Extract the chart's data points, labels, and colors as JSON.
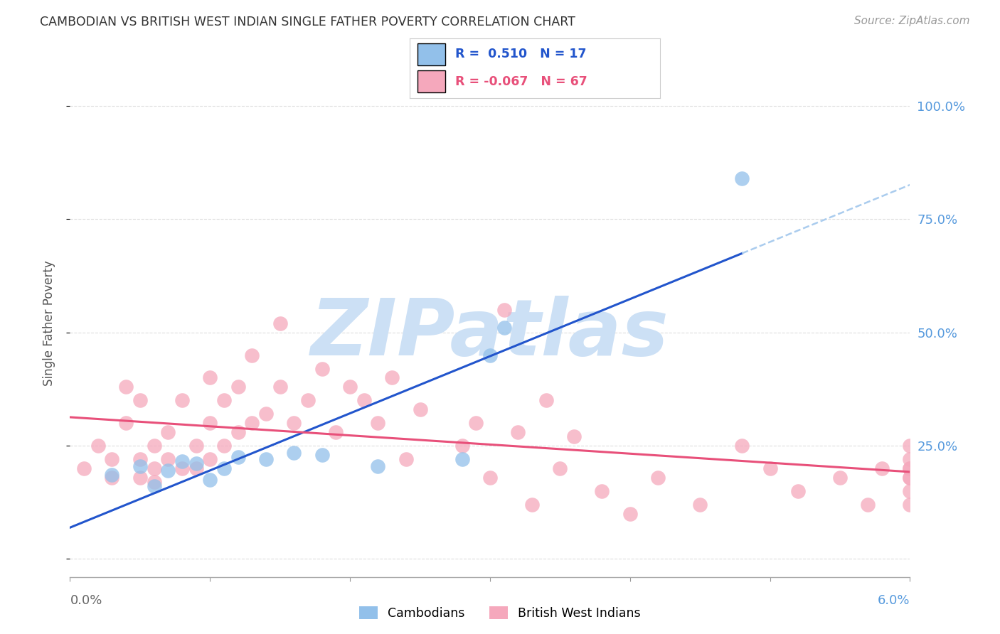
{
  "title": "CAMBODIAN VS BRITISH WEST INDIAN SINGLE FATHER POVERTY CORRELATION CHART",
  "source": "Source: ZipAtlas.com",
  "ylabel": "Single Father Poverty",
  "xmin": 0.0,
  "xmax": 0.06,
  "ymin": -0.04,
  "ymax": 1.08,
  "yticks": [
    0.0,
    0.25,
    0.5,
    0.75,
    1.0
  ],
  "ytick_labels": [
    "",
    "25.0%",
    "50.0%",
    "75.0%",
    "100.0%"
  ],
  "xticks": [
    0.0,
    0.01,
    0.02,
    0.03,
    0.04,
    0.05,
    0.06
  ],
  "color_cambodian": "#92c0ea",
  "color_bwi": "#f5a8bc",
  "color_line_cambodian": "#2255cc",
  "color_line_bwi": "#e8507a",
  "color_axis_right": "#5599dd",
  "watermark_color": "#cce0f5",
  "background_color": "#ffffff",
  "grid_color": "#dddddd",
  "cambodian_x": [
    0.003,
    0.005,
    0.006,
    0.007,
    0.008,
    0.009,
    0.01,
    0.011,
    0.012,
    0.014,
    0.016,
    0.018,
    0.022,
    0.03,
    0.031,
    0.028,
    0.048
  ],
  "cambodian_y": [
    0.185,
    0.205,
    0.16,
    0.195,
    0.215,
    0.21,
    0.175,
    0.2,
    0.225,
    0.22,
    0.235,
    0.23,
    0.205,
    0.45,
    0.51,
    0.22,
    0.84
  ],
  "bwi_x": [
    0.001,
    0.002,
    0.003,
    0.003,
    0.004,
    0.004,
    0.005,
    0.005,
    0.005,
    0.006,
    0.006,
    0.006,
    0.007,
    0.007,
    0.008,
    0.008,
    0.009,
    0.009,
    0.01,
    0.01,
    0.01,
    0.011,
    0.011,
    0.012,
    0.012,
    0.013,
    0.013,
    0.014,
    0.015,
    0.015,
    0.016,
    0.017,
    0.018,
    0.019,
    0.02,
    0.021,
    0.022,
    0.023,
    0.024,
    0.025,
    0.028,
    0.029,
    0.03,
    0.031,
    0.032,
    0.033,
    0.034,
    0.035,
    0.036,
    0.038,
    0.04,
    0.042,
    0.045,
    0.048,
    0.05,
    0.052,
    0.055,
    0.057,
    0.058,
    0.06,
    0.06,
    0.06,
    0.06,
    0.06,
    0.06,
    0.06,
    0.06
  ],
  "bwi_y": [
    0.2,
    0.25,
    0.22,
    0.18,
    0.38,
    0.3,
    0.18,
    0.22,
    0.35,
    0.2,
    0.25,
    0.17,
    0.22,
    0.28,
    0.2,
    0.35,
    0.25,
    0.2,
    0.3,
    0.22,
    0.4,
    0.25,
    0.35,
    0.28,
    0.38,
    0.3,
    0.45,
    0.32,
    0.38,
    0.52,
    0.3,
    0.35,
    0.42,
    0.28,
    0.38,
    0.35,
    0.3,
    0.4,
    0.22,
    0.33,
    0.25,
    0.3,
    0.18,
    0.55,
    0.28,
    0.12,
    0.35,
    0.2,
    0.27,
    0.15,
    0.1,
    0.18,
    0.12,
    0.25,
    0.2,
    0.15,
    0.18,
    0.12,
    0.2,
    0.18,
    0.15,
    0.12,
    0.2,
    0.25,
    0.18,
    0.22,
    0.2
  ]
}
